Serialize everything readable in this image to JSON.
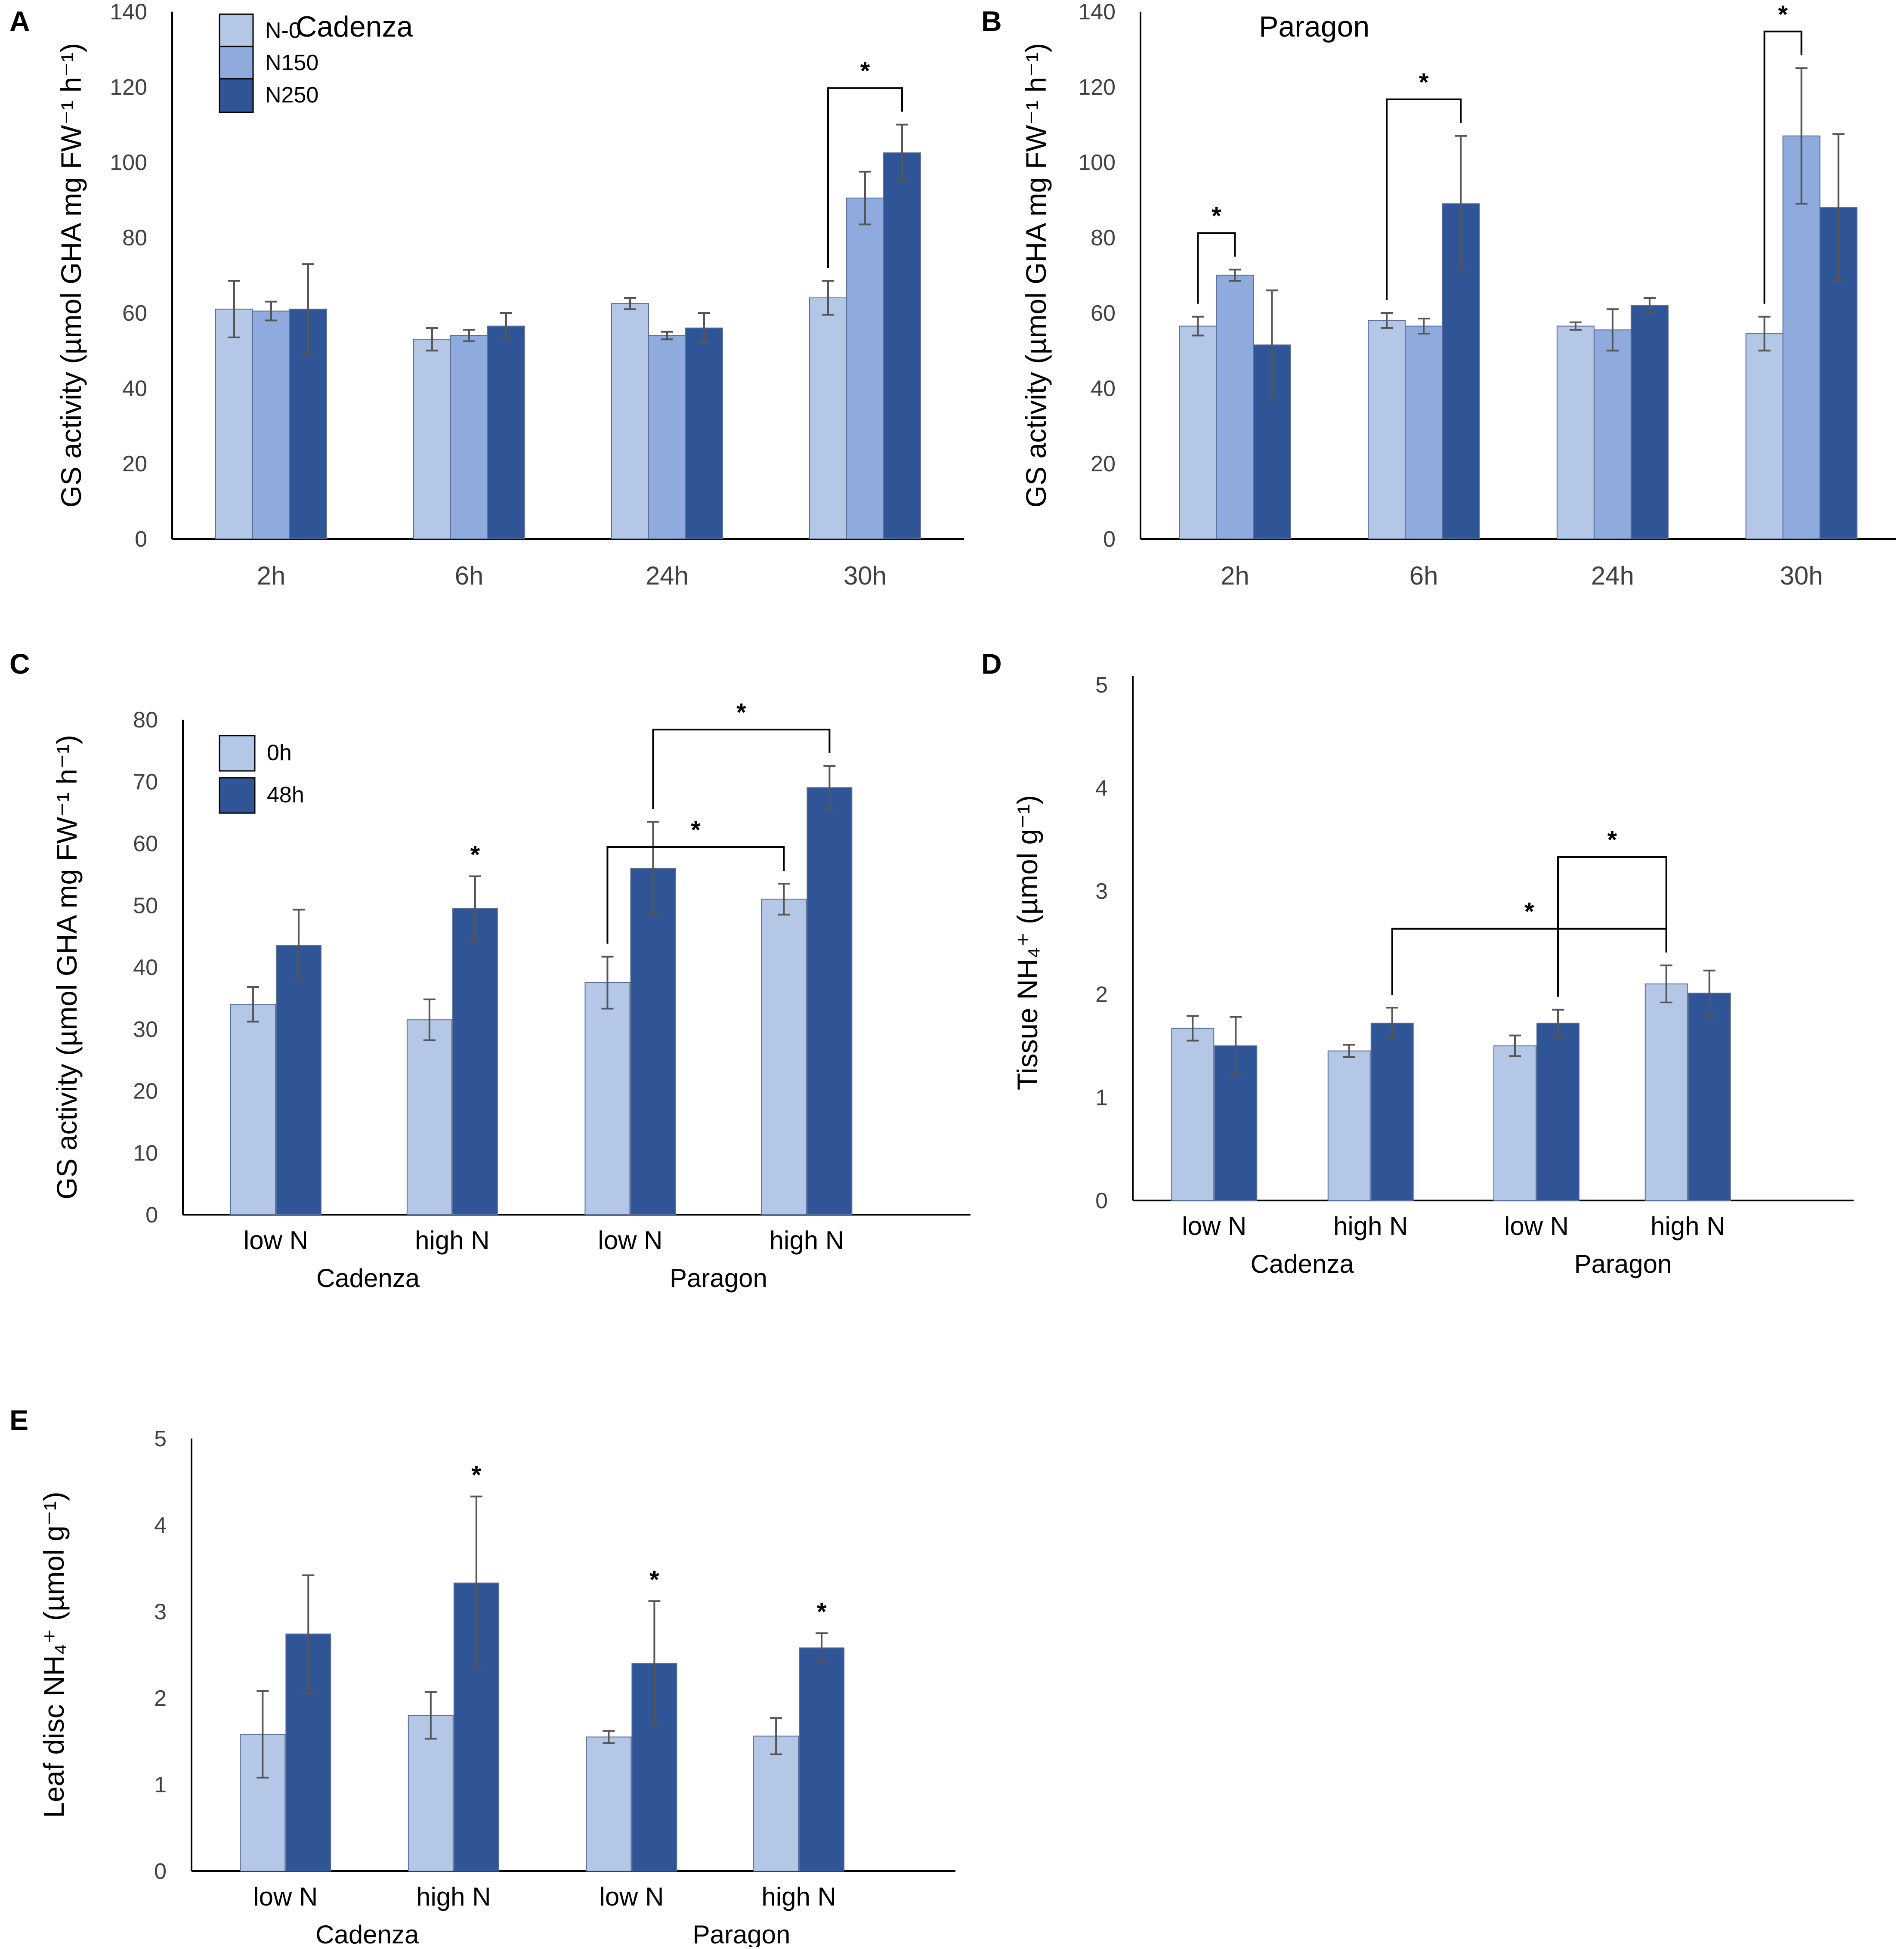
{
  "colors": {
    "n0": "#b4c7e7",
    "n150": "#8faadc",
    "n250": "#2f5597",
    "axis": "#000000",
    "err": "#555555"
  },
  "chart_data": [
    {
      "panel": "A",
      "type": "bar",
      "title": "Cadenza",
      "ylabel": "GS activity (µmol GHA mg FW⁻¹ h⁻¹)",
      "ylim": [
        0,
        140
      ],
      "yticks": [
        "0",
        "20",
        "40",
        "60",
        "80",
        "100",
        "120",
        "140"
      ],
      "categories": [
        "2h",
        "6h",
        "24h",
        "30h"
      ],
      "legend": [
        "N-0",
        "N150",
        "N250"
      ],
      "series": [
        {
          "name": "N-0",
          "values": [
            61,
            53,
            62.5,
            64
          ],
          "errors": [
            7.5,
            3,
            1.5,
            4.5
          ]
        },
        {
          "name": "N150",
          "values": [
            60.5,
            54,
            54,
            90.5
          ],
          "errors": [
            2.5,
            1.5,
            1,
            7
          ]
        },
        {
          "name": "N250",
          "values": [
            61,
            56.5,
            56,
            102.5
          ],
          "errors": [
            12,
            3.5,
            4,
            7.5
          ]
        }
      ],
      "sig": [
        {
          "label": "*",
          "from": [
            3,
            0
          ],
          "to": [
            3,
            2
          ]
        }
      ],
      "stars": []
    },
    {
      "panel": "B",
      "type": "bar",
      "title": "Paragon",
      "ylabel": "GS activity (µmol GHA mg FW⁻¹ h⁻¹)",
      "ylim": [
        0,
        140
      ],
      "yticks": [
        "0",
        "20",
        "40",
        "60",
        "80",
        "100",
        "120",
        "140"
      ],
      "categories": [
        "2h",
        "6h",
        "24h",
        "30h"
      ],
      "legend": [],
      "series": [
        {
          "name": "N-0",
          "values": [
            56.5,
            58,
            56.5,
            54.5
          ],
          "errors": [
            2.5,
            2,
            1,
            4.5
          ]
        },
        {
          "name": "N150",
          "values": [
            70,
            56.5,
            55.5,
            107
          ],
          "errors": [
            1.5,
            2,
            5.5,
            18
          ]
        },
        {
          "name": "N250",
          "values": [
            51.5,
            89,
            62,
            88
          ],
          "errors": [
            14.5,
            18,
            2,
            19.5
          ]
        }
      ],
      "sig": [
        {
          "label": "*",
          "from": [
            0,
            0
          ],
          "to": [
            0,
            1
          ]
        },
        {
          "label": "*",
          "from": [
            1,
            0
          ],
          "to": [
            1,
            2
          ]
        },
        {
          "label": "*",
          "from": [
            3,
            0
          ],
          "to": [
            3,
            1
          ]
        }
      ],
      "stars": []
    },
    {
      "panel": "C",
      "type": "bar",
      "title": "",
      "ylabel": "GS activity (µmol GHA mg FW⁻¹ h⁻¹)",
      "ylim": [
        0,
        80
      ],
      "yticks": [
        "0",
        "10",
        "20",
        "30",
        "40",
        "50",
        "60",
        "70",
        "80"
      ],
      "categories": [
        "low N",
        "high N",
        "low N",
        "high N"
      ],
      "groups": [
        "Cadenza",
        "Paragon"
      ],
      "legend": [
        "0h",
        "48h"
      ],
      "series": [
        {
          "name": "0h",
          "values": [
            34,
            31.5,
            37.5,
            51
          ],
          "errors": [
            2.8,
            3.3,
            4.2,
            2.5
          ]
        },
        {
          "name": "48h",
          "values": [
            43.5,
            49.5,
            56,
            69
          ],
          "errors": [
            5.8,
            5.2,
            7.5,
            3.5
          ]
        }
      ],
      "sig": [
        {
          "label": "*",
          "from": [
            2,
            0
          ],
          "to": [
            3,
            0
          ]
        },
        {
          "label": "*",
          "from": [
            2,
            1
          ],
          "to": [
            3,
            1
          ]
        }
      ],
      "stars": [
        {
          "label": "*",
          "cat": 1,
          "series": 1
        }
      ]
    },
    {
      "panel": "D",
      "type": "bar",
      "title": "",
      "ylabel": "Tissue NH₄⁺ (µmol g⁻¹)",
      "ylim": [
        0,
        5
      ],
      "yticks": [
        "0",
        "1",
        "2",
        "3",
        "4",
        "5"
      ],
      "categories": [
        "low N",
        "high N",
        "low N",
        "high N"
      ],
      "groups": [
        "Cadenza",
        "Paragon"
      ],
      "legend": [],
      "series": [
        {
          "name": "0h",
          "values": [
            1.67,
            1.45,
            1.5,
            2.1
          ],
          "errors": [
            0.12,
            0.06,
            0.1,
            0.18
          ]
        },
        {
          "name": "48h",
          "values": [
            1.5,
            1.72,
            1.72,
            2.01
          ],
          "errors": [
            0.28,
            0.15,
            0.13,
            0.22
          ]
        }
      ],
      "sig": [
        {
          "label": "*",
          "from": [
            1,
            1
          ],
          "to": [
            3,
            0
          ]
        },
        {
          "label": "*",
          "from": [
            2,
            1
          ],
          "to": [
            3,
            0
          ]
        }
      ],
      "stars": []
    },
    {
      "panel": "E",
      "type": "bar",
      "title": "",
      "ylabel": "Leaf disc NH₄⁺ (µmol g⁻¹)",
      "ylim": [
        0,
        5
      ],
      "yticks": [
        "0",
        "1",
        "2",
        "3",
        "4",
        "5"
      ],
      "categories": [
        "low N",
        "high N",
        "low N",
        "high N"
      ],
      "groups": [
        "Cadenza",
        "Paragon"
      ],
      "legend": [],
      "series": [
        {
          "name": "0h",
          "values": [
            1.58,
            1.8,
            1.55,
            1.56
          ],
          "errors": [
            0.5,
            0.27,
            0.07,
            0.21
          ]
        },
        {
          "name": "48h",
          "values": [
            2.74,
            3.33,
            2.4,
            2.58
          ],
          "errors": [
            0.68,
            1.0,
            0.72,
            0.17
          ]
        }
      ],
      "sig": [],
      "stars": [
        {
          "label": "*",
          "cat": 1,
          "series": 1
        },
        {
          "label": "*",
          "cat": 2,
          "series": 1
        },
        {
          "label": "*",
          "cat": 3,
          "series": 1
        }
      ]
    }
  ]
}
